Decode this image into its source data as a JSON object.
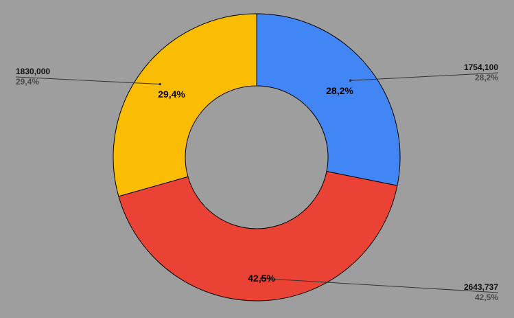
{
  "chart_data": {
    "type": "pie",
    "donut": true,
    "categories": [
      "",
      "",
      ""
    ],
    "values": [
      1754100,
      2643737,
      1830000
    ],
    "value_labels": [
      "1754,100",
      "2643,737",
      "1830,000"
    ],
    "percent_labels": [
      "28,2%",
      "42,5%",
      "29,4%"
    ],
    "colors": [
      "#4285f4",
      "#ea4335",
      "#fbbc04"
    ],
    "start_angle_deg": 0,
    "direction": "clockwise",
    "title": "",
    "legend": "none",
    "background": "#9e9e9e"
  }
}
